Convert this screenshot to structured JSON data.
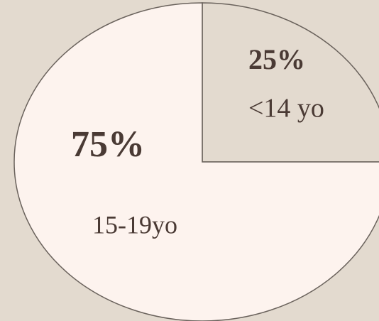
{
  "chart_data": {
    "type": "pie",
    "categories": [
      "<14 yo",
      "15-19yo"
    ],
    "values": [
      25,
      75
    ],
    "value_labels": [
      "25%",
      "75%"
    ],
    "colors": [
      "#e3dacf",
      "#fdf3ee"
    ]
  }
}
